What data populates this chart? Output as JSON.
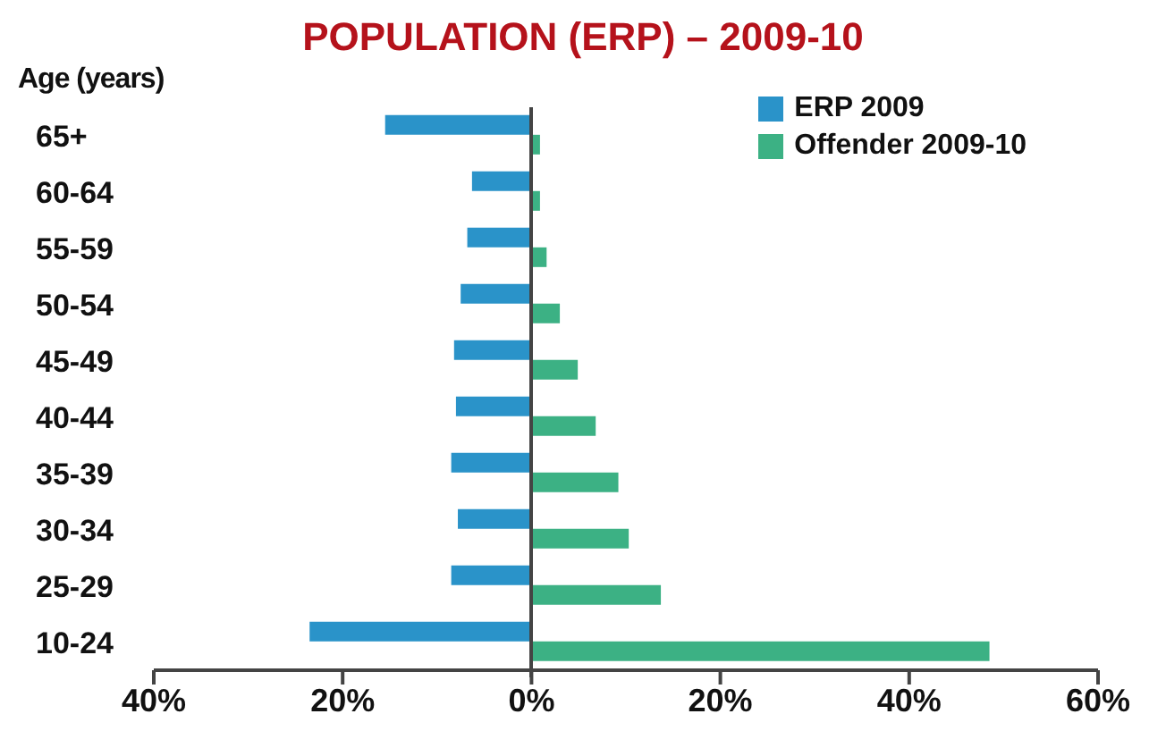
{
  "chart_data": {
    "type": "bar",
    "orientation": "horizontal",
    "title": "POPULATION (ERP) – 2009-10",
    "ylabel": "Age (years)",
    "categories": [
      "65+",
      "60-64",
      "55-59",
      "50-54",
      "45-49",
      "40-44",
      "35-39",
      "30-34",
      "25-29",
      "10-24"
    ],
    "series": [
      {
        "name": "ERP 2009",
        "color": "#2a93c9",
        "values": [
          -15.5,
          -6.3,
          -6.8,
          -7.5,
          -8.2,
          -8.0,
          -8.5,
          -7.8,
          -8.5,
          -23.5
        ]
      },
      {
        "name": "Offender 2009-10",
        "color": "#3cb184",
        "values": [
          0.9,
          0.9,
          1.6,
          3.0,
          4.9,
          6.8,
          9.2,
          10.3,
          13.7,
          48.5
        ]
      }
    ],
    "xlim": [
      -40,
      60
    ],
    "xticks": [
      {
        "value": -40,
        "label": "40%"
      },
      {
        "value": -20,
        "label": "20%"
      },
      {
        "value": 0,
        "label": "0%"
      },
      {
        "value": 20,
        "label": "20%"
      },
      {
        "value": 40,
        "label": "40%"
      },
      {
        "value": 60,
        "label": "60%"
      }
    ],
    "legend": "top right",
    "grid": false
  }
}
